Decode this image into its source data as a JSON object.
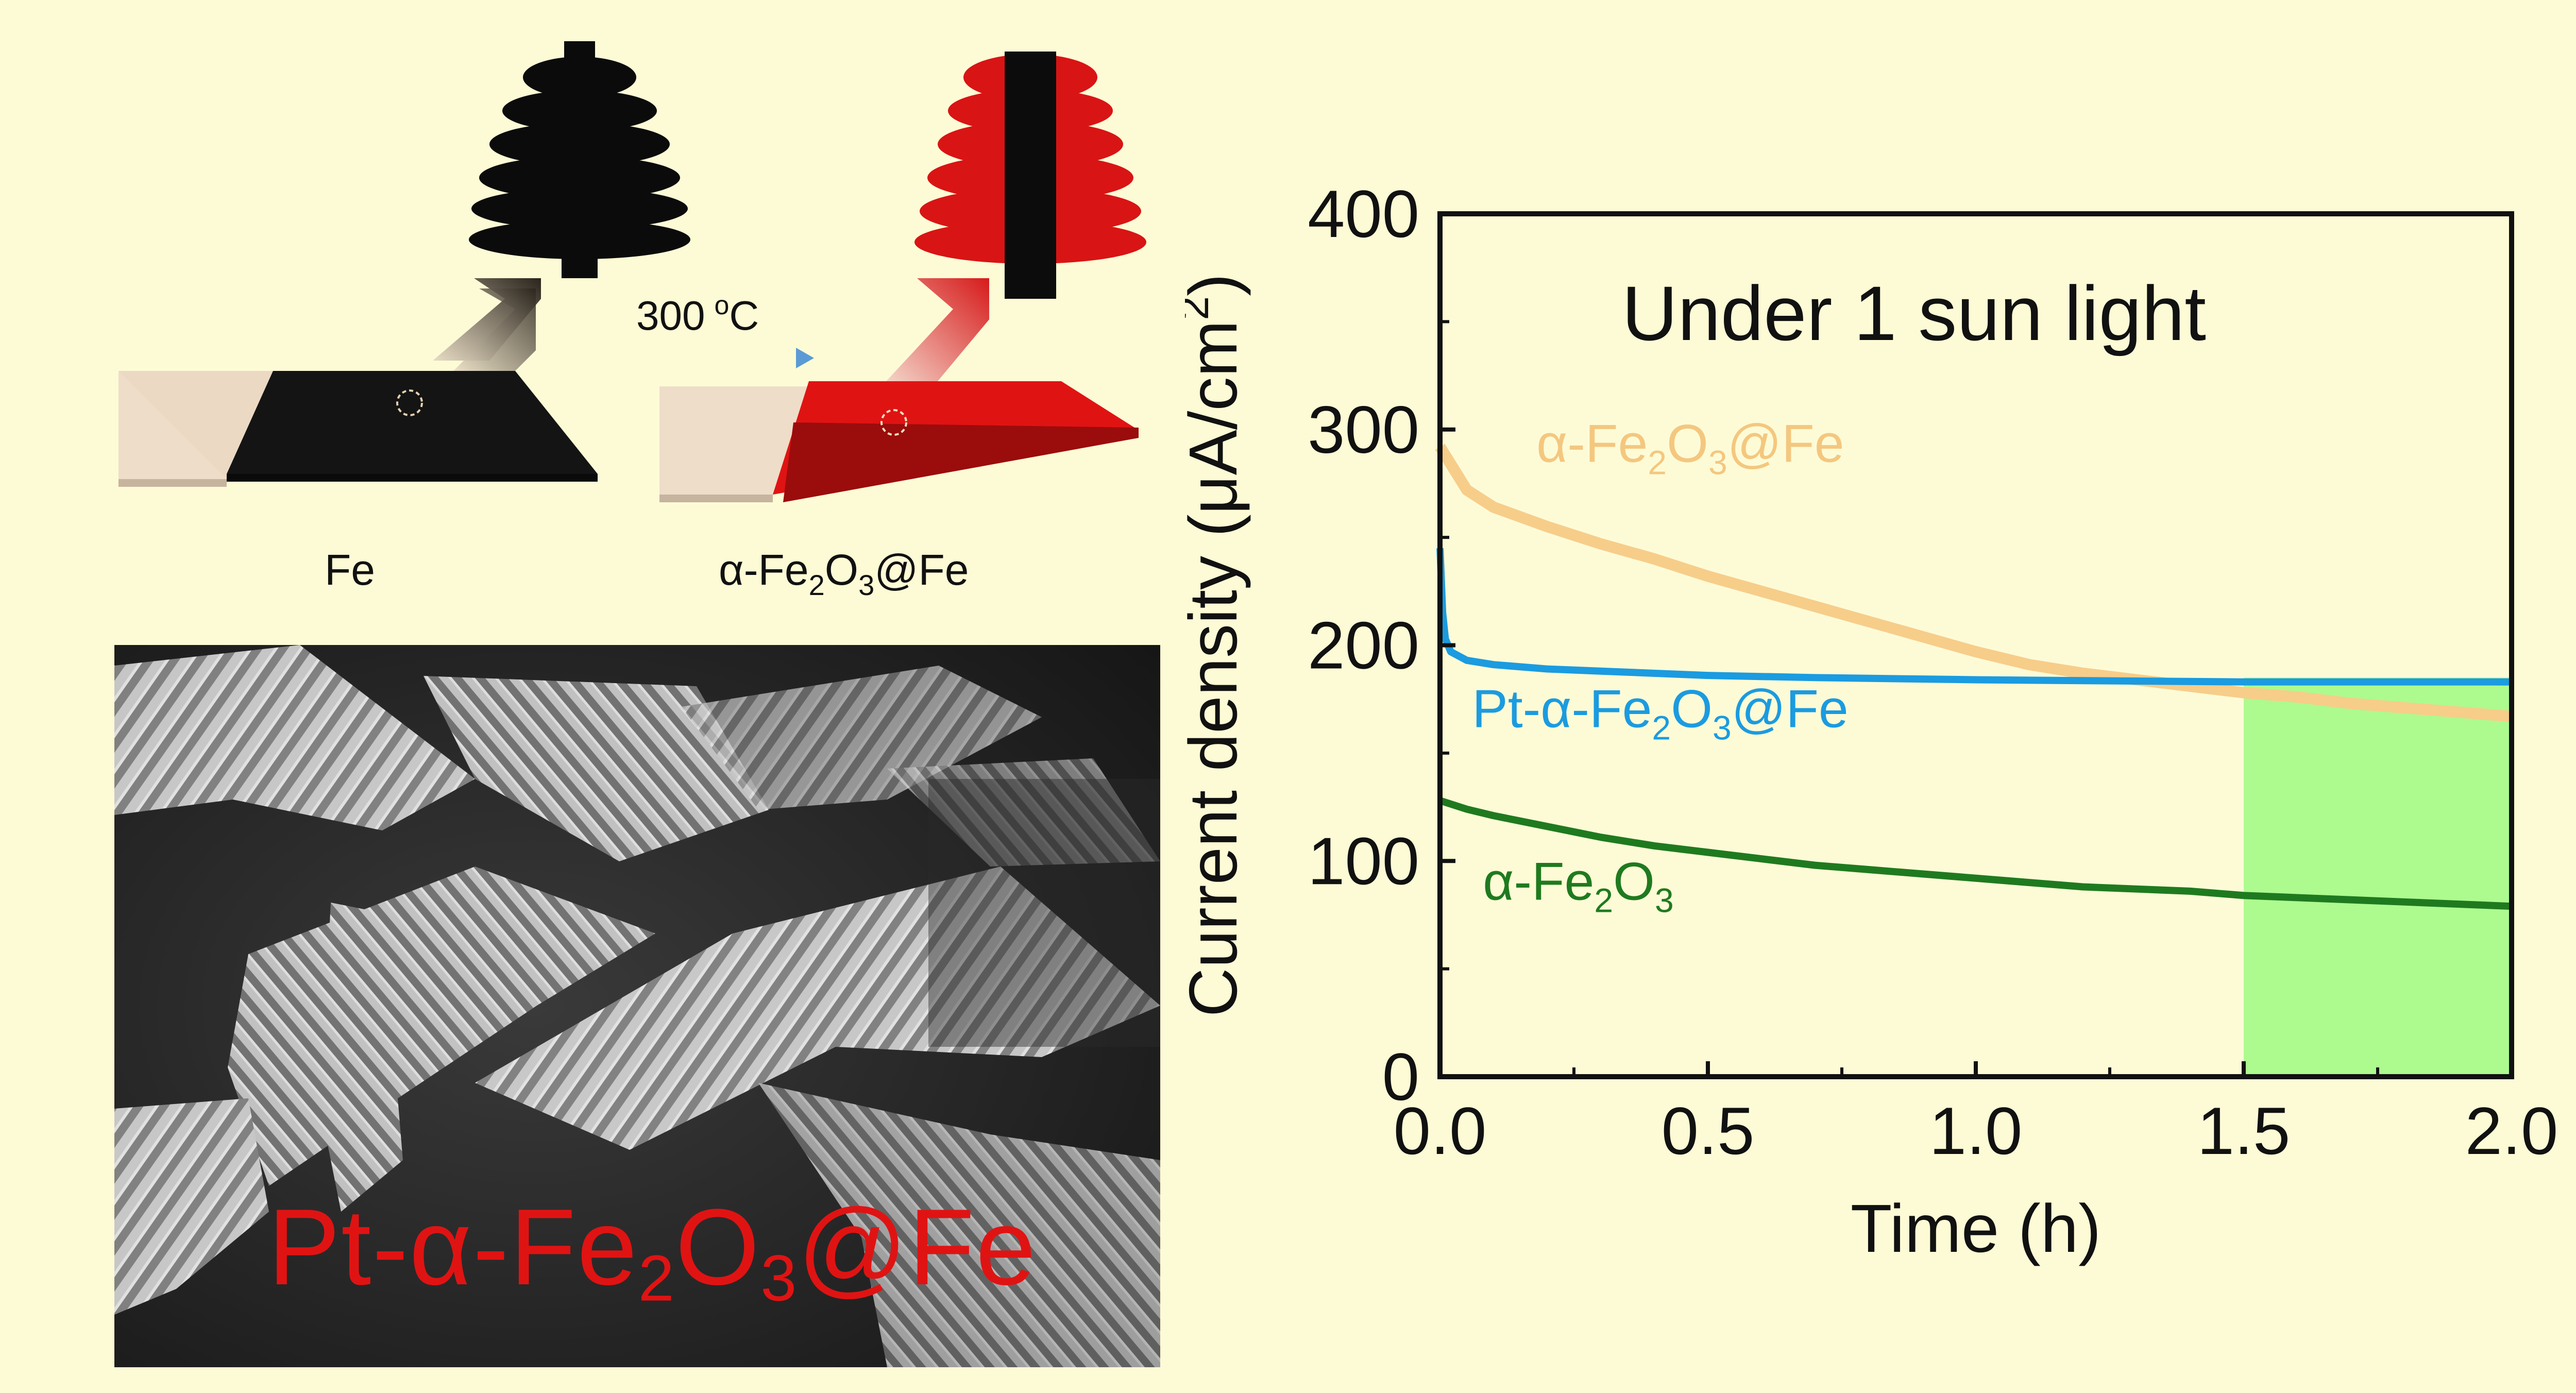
{
  "scheme": {
    "label_fe": "Fe",
    "label_oxide_prefix": "α-Fe",
    "label_oxide_sub1": "2",
    "label_oxide_mid": "O",
    "label_oxide_sub2": "3",
    "label_oxide_suffix": "@Fe",
    "temp_value": "300",
    "temp_sup": "o",
    "temp_unit": "C"
  },
  "sem": {
    "label_prefix": "Pt-α-Fe",
    "label_sub1": "2",
    "label_mid": "O",
    "label_sub2": "3",
    "label_suffix": "@Fe"
  },
  "chart_data": {
    "type": "line",
    "annotation": "Under 1 sun light",
    "xlabel": "Time (h)",
    "ylabel_main": "Current density (μA/cm",
    "ylabel_sup": "2",
    "ylabel_close": ")",
    "xlim": [
      0,
      2.0
    ],
    "ylim": [
      0,
      400
    ],
    "xticks": [
      "0.0",
      "0.5",
      "1.0",
      "1.5",
      "2.0"
    ],
    "yticks": [
      "0",
      "100",
      "200",
      "300",
      "400"
    ],
    "highlight": {
      "x_from": 1.5,
      "x_to": 2.0,
      "color": "#adfa8f"
    },
    "series": [
      {
        "name": "α-Fe2O3@Fe",
        "color": "#f7cd8a",
        "points": [
          [
            0.0,
            292
          ],
          [
            0.05,
            272
          ],
          [
            0.1,
            264
          ],
          [
            0.2,
            255
          ],
          [
            0.3,
            247
          ],
          [
            0.4,
            240
          ],
          [
            0.5,
            232
          ],
          [
            0.6,
            225
          ],
          [
            0.7,
            218
          ],
          [
            0.8,
            211
          ],
          [
            0.9,
            204
          ],
          [
            1.0,
            197
          ],
          [
            1.1,
            191
          ],
          [
            1.2,
            187
          ],
          [
            1.3,
            184
          ],
          [
            1.4,
            181
          ],
          [
            1.5,
            178
          ],
          [
            1.6,
            176
          ],
          [
            1.7,
            173
          ],
          [
            1.8,
            171
          ],
          [
            1.9,
            169
          ],
          [
            2.0,
            167
          ]
        ]
      },
      {
        "name": "Pt-α-Fe2O3@Fe",
        "color": "#1b9be0",
        "points": [
          [
            0.0,
            245
          ],
          [
            0.005,
            215
          ],
          [
            0.01,
            203
          ],
          [
            0.02,
            197
          ],
          [
            0.05,
            193
          ],
          [
            0.1,
            191
          ],
          [
            0.2,
            189
          ],
          [
            0.3,
            188
          ],
          [
            0.5,
            186
          ],
          [
            0.7,
            185
          ],
          [
            1.0,
            184
          ],
          [
            1.5,
            183
          ],
          [
            2.0,
            183
          ]
        ]
      },
      {
        "name": "α-Fe2O3",
        "color": "#1f7a1f",
        "points": [
          [
            0.0,
            128
          ],
          [
            0.05,
            124
          ],
          [
            0.1,
            121
          ],
          [
            0.2,
            116
          ],
          [
            0.3,
            111
          ],
          [
            0.4,
            107
          ],
          [
            0.5,
            104
          ],
          [
            0.6,
            101
          ],
          [
            0.7,
            98
          ],
          [
            0.8,
            96
          ],
          [
            0.9,
            94
          ],
          [
            1.0,
            92
          ],
          [
            1.1,
            90
          ],
          [
            1.2,
            88
          ],
          [
            1.3,
            87
          ],
          [
            1.4,
            86
          ],
          [
            1.5,
            84
          ],
          [
            1.6,
            83
          ],
          [
            1.7,
            82
          ],
          [
            1.8,
            81
          ],
          [
            1.9,
            80
          ],
          [
            2.0,
            79
          ]
        ]
      }
    ],
    "series_labels": [
      {
        "prefix": "α-Fe",
        "sub1": "2",
        "mid": "O",
        "sub2": "3",
        "suffix": "@Fe",
        "color": "#f4c77f"
      },
      {
        "prefix": "Pt-α-Fe",
        "sub1": "2",
        "mid": "O",
        "sub2": "3",
        "suffix": "@Fe",
        "color": "#1b9be0"
      },
      {
        "prefix": "α-Fe",
        "sub1": "2",
        "mid": "O",
        "sub2": "3",
        "suffix": "",
        "color": "#1f7a1f"
      }
    ]
  }
}
